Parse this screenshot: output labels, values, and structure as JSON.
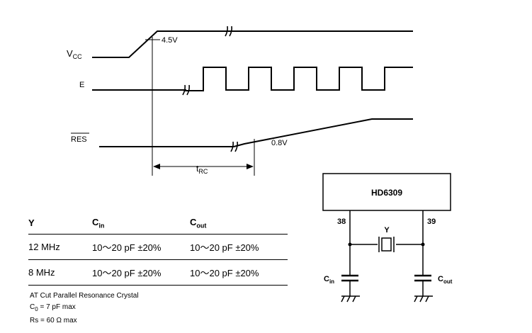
{
  "timing": {
    "vcc_label": "V",
    "vcc_sub": "CC",
    "e_label": "E",
    "res_label": "RES",
    "v45_label": "4.5V",
    "v08_label": "0.8V",
    "trc_label": "t",
    "trc_sub": "RC"
  },
  "circuit": {
    "chip_label": "HD6309",
    "pin_left": "38",
    "pin_right": "39",
    "crystal_label": "Y",
    "cin_label": "C",
    "cin_sub": "in",
    "cout_label": "C",
    "cout_sub": "out"
  },
  "table": {
    "headers": {
      "y": "Y",
      "cin_main": "C",
      "cin_sub": "in",
      "cout_main": "C",
      "cout_sub": "out"
    },
    "rows": [
      {
        "y": "12 MHz",
        "cin": "10～20 pF ±20%",
        "cout": "10～20 pF ±20%"
      },
      {
        "y": "8 MHz",
        "cin": "10～20 pF ±20%",
        "cout": "10～20 pF ±20%"
      }
    ]
  },
  "notes": {
    "line1": "AT Cut Parallel Resonance Crystal",
    "line2_main": "C",
    "line2_sub": "0",
    "line2_rest": " = 7 pF max",
    "line3": "Rs = 60 Ω max"
  }
}
